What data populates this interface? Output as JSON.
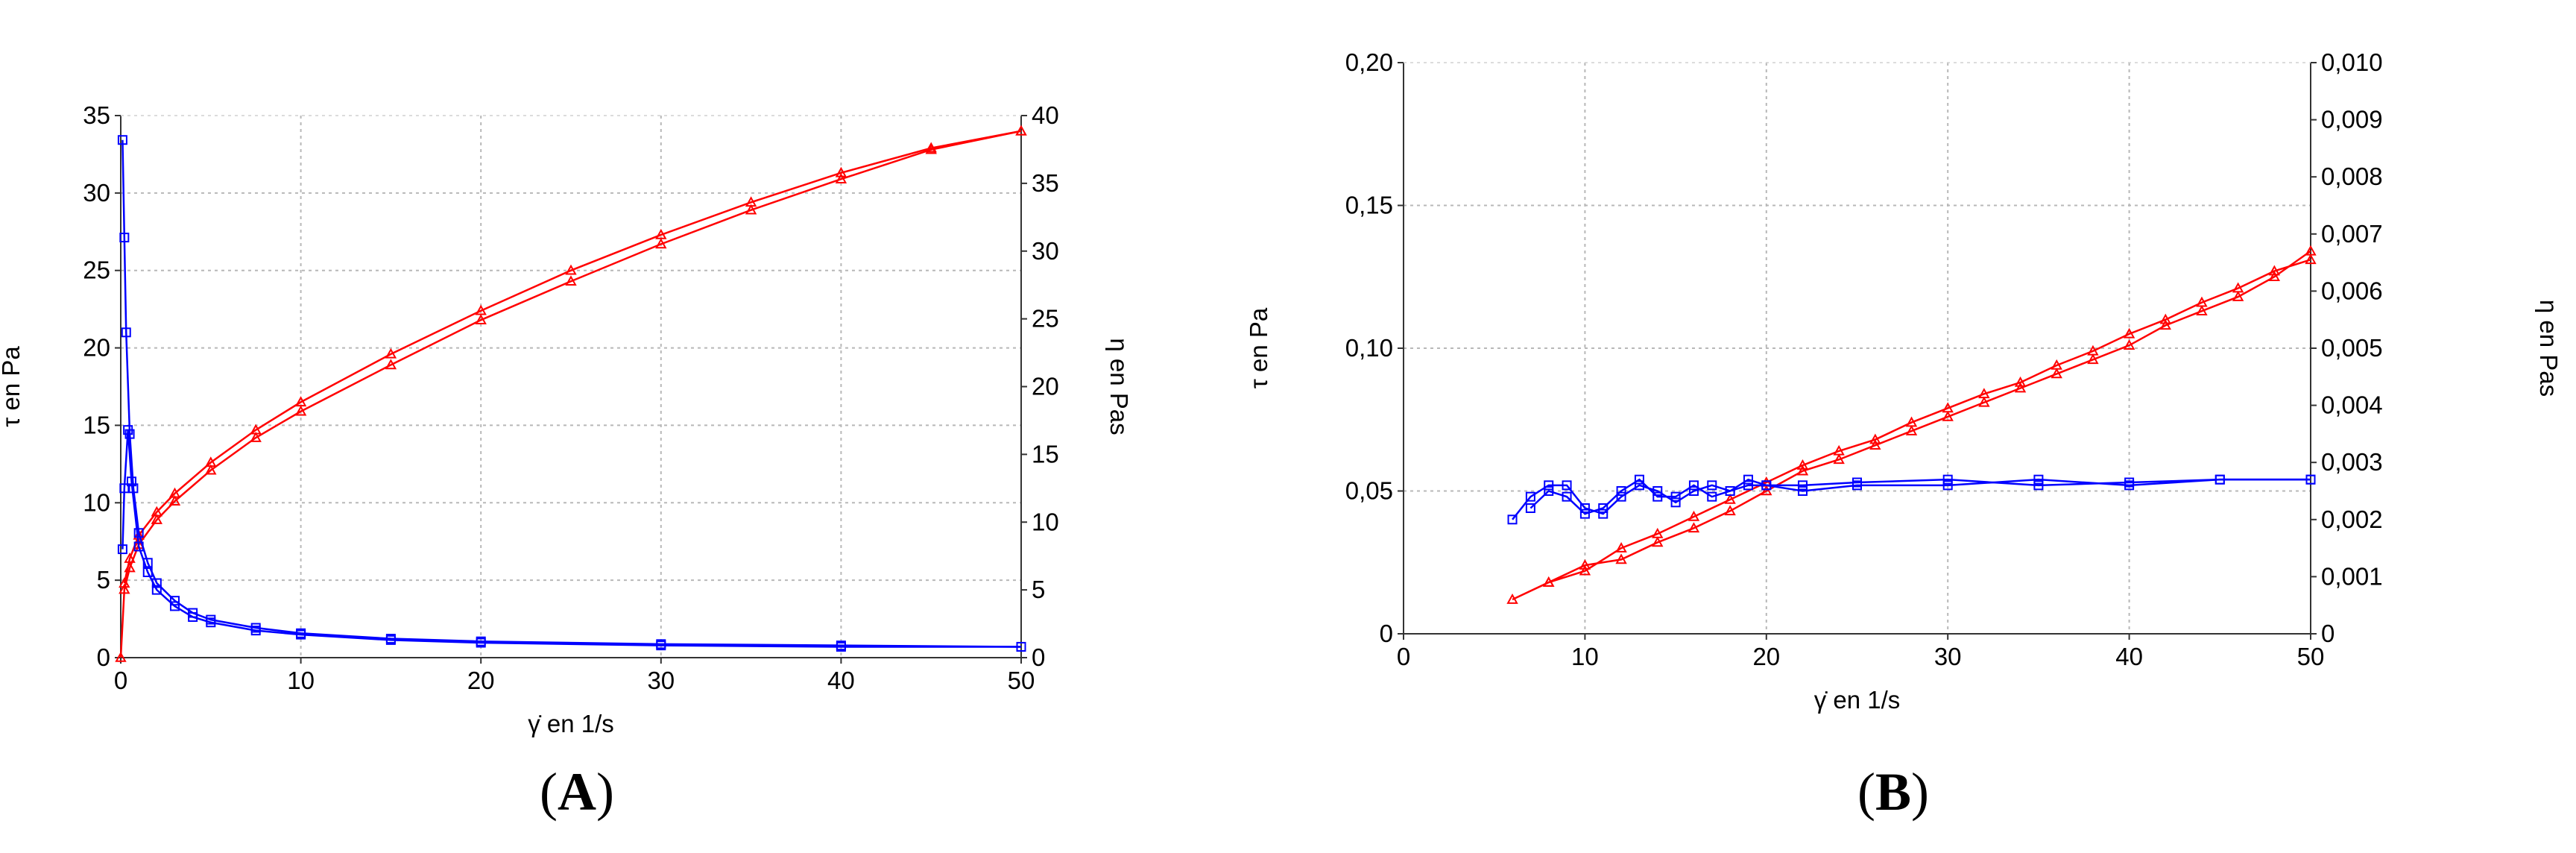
{
  "chart_data": [
    {
      "panel": "A",
      "type": "line",
      "xlabel": "γ̇ en 1/s",
      "ylabel_left": "τ en Pa",
      "ylabel_right": "η en Pas",
      "xlim": [
        0,
        50
      ],
      "ylim_left": [
        0,
        35
      ],
      "ylim_right": [
        0,
        40
      ],
      "x_ticks": [
        "0",
        "10",
        "20",
        "30",
        "40",
        "50"
      ],
      "y_left_ticks": [
        "0",
        "5",
        "10",
        "15",
        "20",
        "25",
        "30",
        "35"
      ],
      "y_right_ticks": [
        "0",
        "5",
        "10",
        "15",
        "20",
        "25",
        "30",
        "35",
        "40"
      ],
      "grid": true,
      "series": [
        {
          "axis": "left",
          "color": "#ff0000",
          "marker": "triangle",
          "x": [
            0,
            0.2,
            0.5,
            1,
            2,
            3,
            5,
            7.5,
            10,
            15,
            20,
            25,
            30,
            35,
            40,
            45,
            50
          ],
          "y": [
            0,
            4.4,
            5.8,
            7.3,
            8.9,
            10.1,
            12.1,
            14.2,
            15.9,
            18.9,
            21.8,
            24.3,
            26.7,
            28.9,
            30.9,
            32.8,
            34.0
          ]
        },
        {
          "axis": "left",
          "color": "#ff0000",
          "marker": "triangle",
          "x": [
            0.2,
            0.5,
            1,
            2,
            3,
            5,
            7.5,
            10,
            15,
            20,
            25,
            30,
            35,
            40,
            45,
            50
          ],
          "y": [
            4.8,
            6.4,
            7.9,
            9.4,
            10.6,
            12.6,
            14.7,
            16.5,
            19.6,
            22.4,
            25.0,
            27.3,
            29.4,
            31.3,
            32.9,
            34.0
          ]
        },
        {
          "axis": "right",
          "color": "#0000ff",
          "marker": "square",
          "x": [
            0.1,
            0.2,
            0.3,
            0.5,
            0.7,
            1,
            1.5,
            2,
            3,
            4,
            5,
            7.5,
            10,
            15,
            20,
            30,
            40,
            50
          ],
          "y": [
            38.2,
            31.0,
            24.0,
            16.5,
            12.5,
            9.2,
            7.0,
            5.5,
            4.2,
            3.3,
            2.8,
            2.2,
            1.8,
            1.4,
            1.2,
            1.0,
            0.9,
            0.8
          ]
        },
        {
          "axis": "right",
          "color": "#0000ff",
          "marker": "square",
          "x": [
            0.1,
            0.2,
            0.4,
            0.6,
            1,
            1.5,
            2,
            3,
            4,
            5,
            7.5,
            10,
            15,
            20,
            30,
            40,
            50
          ],
          "y": [
            8.0,
            12.5,
            16.8,
            13.0,
            8.2,
            6.3,
            5.0,
            3.8,
            3.0,
            2.6,
            2.0,
            1.7,
            1.3,
            1.1,
            0.9,
            0.8,
            0.8
          ]
        }
      ]
    },
    {
      "panel": "B",
      "type": "line",
      "xlabel": "γ̇ en 1/s",
      "ylabel_left": "τ en Pa",
      "ylabel_right": "η en Pas",
      "xlim": [
        0,
        50
      ],
      "ylim_left": [
        0,
        0.2
      ],
      "ylim_right": [
        0,
        0.01
      ],
      "x_ticks": [
        "0",
        "10",
        "20",
        "30",
        "40",
        "50"
      ],
      "y_left_ticks": [
        "0",
        "0,05",
        "0,10",
        "0,15",
        "0,20"
      ],
      "y_right_ticks": [
        "0",
        "0,001",
        "0,002",
        "0,003",
        "0,004",
        "0,005",
        "0,006",
        "0,007",
        "0,008",
        "0,009",
        "0,010"
      ],
      "grid": true,
      "series": [
        {
          "axis": "left",
          "color": "#ff0000",
          "marker": "triangle",
          "x": [
            6,
            8,
            10,
            12,
            14,
            16,
            18,
            20,
            22,
            24,
            26,
            28,
            30,
            32,
            34,
            36,
            38,
            40,
            42,
            44,
            46,
            48,
            50
          ],
          "y": [
            0.012,
            0.018,
            0.024,
            0.026,
            0.032,
            0.037,
            0.043,
            0.05,
            0.057,
            0.061,
            0.066,
            0.071,
            0.076,
            0.081,
            0.086,
            0.091,
            0.096,
            0.101,
            0.108,
            0.113,
            0.118,
            0.125,
            0.134
          ]
        },
        {
          "axis": "left",
          "color": "#ff0000",
          "marker": "triangle",
          "x": [
            8,
            10,
            12,
            14,
            16,
            18,
            20,
            22,
            24,
            26,
            28,
            30,
            32,
            34,
            36,
            38,
            40,
            42,
            44,
            46,
            48,
            50
          ],
          "y": [
            0.018,
            0.022,
            0.03,
            0.035,
            0.041,
            0.047,
            0.053,
            0.059,
            0.064,
            0.068,
            0.074,
            0.079,
            0.084,
            0.088,
            0.094,
            0.099,
            0.105,
            0.11,
            0.116,
            0.121,
            0.127,
            0.131
          ]
        },
        {
          "axis": "right",
          "color": "#0000ff",
          "marker": "square",
          "x": [
            6,
            7,
            8,
            9,
            10,
            11,
            12,
            13,
            14,
            15,
            16,
            17,
            18,
            19,
            20,
            22,
            25,
            30,
            35,
            40,
            45,
            50
          ],
          "y": [
            0.002,
            0.0024,
            0.0026,
            0.0026,
            0.0022,
            0.0021,
            0.0024,
            0.0026,
            0.0025,
            0.0023,
            0.0025,
            0.0026,
            0.0025,
            0.0026,
            0.0026,
            0.0026,
            0.00265,
            0.0027,
            0.0026,
            0.00265,
            0.0027,
            0.0027
          ]
        },
        {
          "axis": "right",
          "color": "#0000ff",
          "marker": "square",
          "x": [
            7,
            8,
            9,
            10,
            11,
            12,
            13,
            14,
            15,
            16,
            17,
            18,
            19,
            20,
            22,
            25,
            30,
            35,
            40,
            45,
            50
          ],
          "y": [
            0.0022,
            0.0025,
            0.0024,
            0.0021,
            0.0022,
            0.0025,
            0.0027,
            0.0024,
            0.0024,
            0.0026,
            0.0024,
            0.0025,
            0.0027,
            0.0026,
            0.0025,
            0.0026,
            0.0026,
            0.0027,
            0.0026,
            0.0027,
            0.0027
          ]
        }
      ]
    }
  ]
}
